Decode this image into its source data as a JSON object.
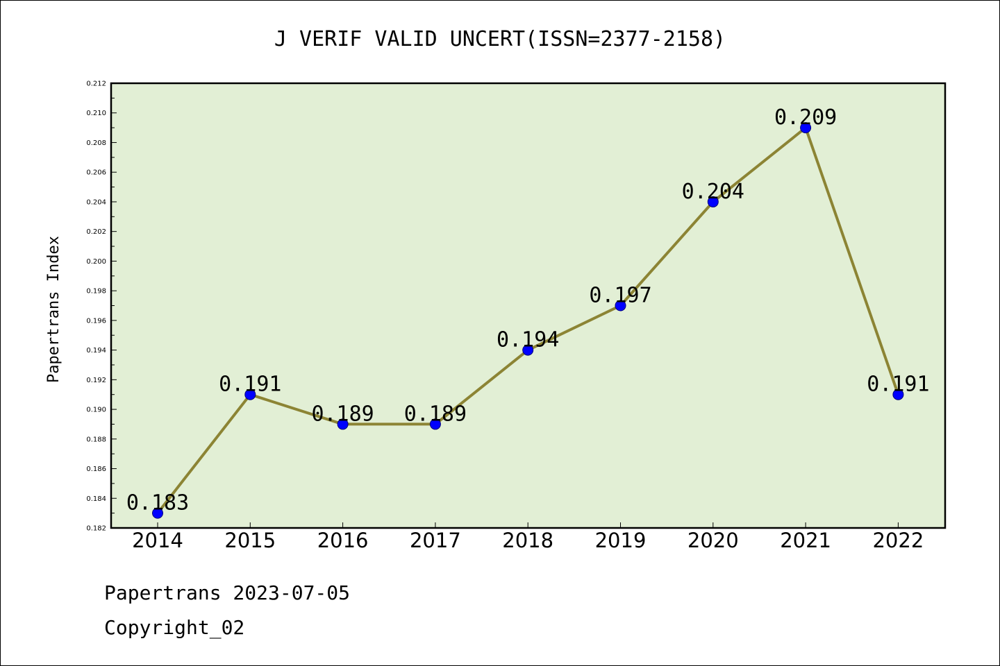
{
  "footer": {
    "line1": "Papertrans 2023-07-05",
    "line2": "Copyright_02"
  },
  "chart_data": {
    "type": "line",
    "title": "J VERIF VALID UNCERT(ISSN=2377-2158)",
    "xlabel": "",
    "ylabel": "Papertrans Index",
    "categories": [
      "2014",
      "2015",
      "2016",
      "2017",
      "2018",
      "2019",
      "2020",
      "2021",
      "2022"
    ],
    "series": [
      {
        "values": [
          0.183,
          0.191,
          0.189,
          0.189,
          0.194,
          0.197,
          0.204,
          0.209,
          0.191
        ]
      }
    ],
    "data_labels": [
      "0.183",
      "0.191",
      "0.189",
      "0.189",
      "0.194",
      "0.197",
      "0.204",
      "0.209",
      "0.191"
    ],
    "ylim": [
      0.182,
      0.212
    ],
    "yticks": [
      "0.182",
      "0.184",
      "0.186",
      "0.188",
      "0.190",
      "0.192",
      "0.194",
      "0.196",
      "0.198",
      "0.200",
      "0.202",
      "0.204",
      "0.206",
      "0.208",
      "0.210",
      "0.212"
    ],
    "grid": false,
    "legend": "none",
    "colors": {
      "plot_background": "#e2efd5",
      "line": "#8c8434",
      "marker": "#0000ff"
    }
  }
}
